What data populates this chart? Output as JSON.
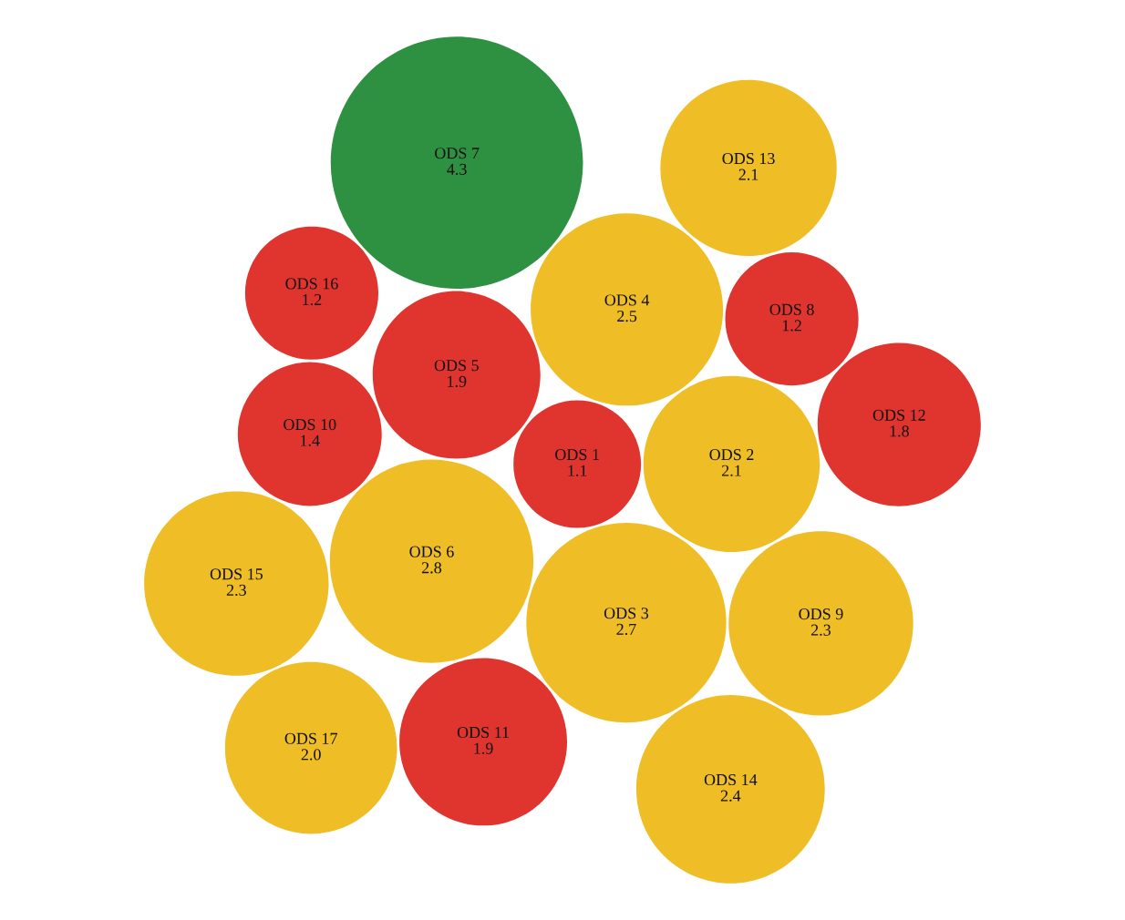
{
  "chart_data": {
    "type": "other",
    "categories": [
      "ODS 1",
      "ODS 2",
      "ODS 3",
      "ODS 4",
      "ODS 5",
      "ODS 6",
      "ODS 7",
      "ODS 8",
      "ODS 9",
      "ODS 10",
      "ODS 11",
      "ODS 12",
      "ODS 13",
      "ODS 14",
      "ODS 15",
      "ODS 16",
      "ODS 17"
    ],
    "values": [
      1.1,
      2.1,
      2.7,
      2.5,
      1.9,
      2.8,
      4.3,
      1.2,
      2.3,
      1.4,
      1.9,
      1.8,
      2.1,
      2.4,
      2.3,
      1.2,
      2.0
    ],
    "value_labels": [
      "1.1",
      "2.1",
      "2.7",
      "2.5",
      "1.9",
      "2.8",
      "4.3",
      "1.2",
      "2.3",
      "1.4",
      "1.9",
      "1.8",
      "2.1",
      "2.4",
      "2.3",
      "1.2",
      "2.0"
    ],
    "colors": [
      "#e0352f",
      "#efbd26",
      "#efbd26",
      "#efbd26",
      "#e0352f",
      "#efbd26",
      "#2e9142",
      "#e0352f",
      "#efbd26",
      "#e0352f",
      "#e0352f",
      "#e0352f",
      "#efbd26",
      "#efbd26",
      "#efbd26",
      "#e0352f",
      "#efbd26"
    ]
  }
}
